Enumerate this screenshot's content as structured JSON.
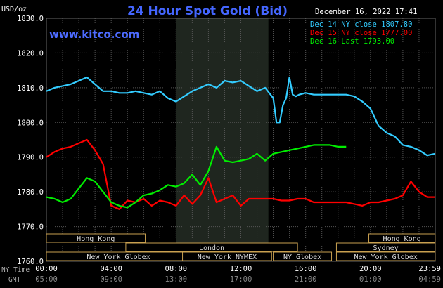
{
  "header": {
    "units": "USD/oz",
    "title": "24 Hour Spot Gold (Bid)",
    "date": "December 16, 2022 17:41",
    "watermark": "www.kitco.com"
  },
  "chart_data": {
    "type": "line",
    "title": "24 Hour Spot Gold (Bid)",
    "ylabel": "USD/oz",
    "ylim": [
      1760,
      1830
    ],
    "yticks": [
      "1830.0",
      "1820.0",
      "1810.0",
      "1800.0",
      "1790.0",
      "1780.0",
      "1770.0",
      "1760.0"
    ],
    "xlim": [
      0,
      24
    ],
    "ny_time_ticks": [
      "00:00",
      "04:00",
      "08:00",
      "12:00",
      "16:00",
      "20:00",
      "23:59"
    ],
    "gmt_ticks": [
      "05:00",
      "09:00",
      "13:00",
      "17:00",
      "21:00",
      "01:00",
      "04:59"
    ],
    "ny_time_label": "NY Time",
    "gmt_label": "GMT",
    "grid": true,
    "legend_position": "top-right",
    "highlight_range": [
      8,
      13.7
    ],
    "series": [
      {
        "name": "Dec 14 NY close 1807.80",
        "color": "#33ccff",
        "x": [
          0,
          0.5,
          1,
          1.5,
          2,
          2.5,
          3,
          3.5,
          4,
          4.5,
          5,
          5.5,
          6,
          6.5,
          7,
          7.5,
          8,
          8.5,
          9,
          9.5,
          10,
          10.5,
          11,
          11.5,
          12,
          12.5,
          13,
          13.5,
          14,
          14.2,
          14.4,
          14.6,
          14.8,
          15,
          15.2,
          15.4,
          15.6,
          16,
          16.5,
          17,
          17.5,
          18,
          18.5,
          19,
          19.5,
          20,
          20.5,
          21,
          21.5,
          22,
          22.5,
          23,
          23.5,
          23.99
        ],
        "y": [
          1809,
          1810,
          1810.5,
          1811,
          1812,
          1813,
          1811,
          1809,
          1809,
          1808.5,
          1808.5,
          1809,
          1808.5,
          1808,
          1809,
          1807,
          1806,
          1807.5,
          1809,
          1810,
          1811,
          1810,
          1812,
          1811.5,
          1812,
          1810.5,
          1809,
          1810,
          1807,
          1800,
          1800,
          1805,
          1807,
          1813,
          1808,
          1807.5,
          1808,
          1808.5,
          1808,
          1808,
          1808,
          1808,
          1808,
          1807.5,
          1806,
          1804,
          1799,
          1797,
          1796,
          1793.5,
          1793,
          1792,
          1790.5,
          1791
        ]
      },
      {
        "name": "Dec 15 NY close 1777.00",
        "color": "#ff0000",
        "x": [
          0,
          0.5,
          1,
          1.5,
          2,
          2.5,
          3,
          3.5,
          4,
          4.5,
          5,
          5.5,
          6,
          6.5,
          7,
          7.5,
          8,
          8.5,
          9,
          9.5,
          10,
          10.5,
          11,
          11.5,
          12,
          12.5,
          13,
          13.5,
          14,
          14.5,
          15,
          15.5,
          16,
          16.5,
          17,
          17.5,
          18,
          18.5,
          19,
          19.5,
          20,
          20.5,
          21,
          21.5,
          22,
          22.5,
          23,
          23.5,
          23.99
        ],
        "y": [
          1790,
          1791.5,
          1792.5,
          1793,
          1794,
          1795,
          1792,
          1788,
          1776,
          1775,
          1777.5,
          1777,
          1778,
          1776,
          1777.5,
          1777,
          1776,
          1779,
          1776.5,
          1779,
          1784,
          1777,
          1778,
          1779,
          1776,
          1778,
          1778,
          1778,
          1778,
          1777.5,
          1777.5,
          1778,
          1778,
          1777,
          1777,
          1777,
          1777,
          1777,
          1776.5,
          1776,
          1777,
          1777,
          1777.5,
          1778,
          1779,
          1783,
          1780,
          1778.5,
          1778.5
        ]
      },
      {
        "name": "Dec 16 Last 1793.00",
        "color": "#00ee00",
        "x": [
          0,
          0.5,
          1,
          1.5,
          2,
          2.5,
          3,
          3.5,
          4,
          4.5,
          5,
          5.5,
          6,
          6.5,
          7,
          7.5,
          8,
          8.5,
          9,
          9.5,
          10,
          10.5,
          11,
          11.5,
          12,
          12.5,
          13,
          13.5,
          14,
          14.5,
          15,
          15.5,
          16,
          16.5,
          17,
          17.5,
          18,
          18.5
        ],
        "y": [
          1778.5,
          1778,
          1777,
          1778,
          1781,
          1784,
          1783,
          1780,
          1777,
          1776,
          1775.5,
          1777,
          1779,
          1779.5,
          1780.5,
          1782,
          1781.5,
          1782.5,
          1785,
          1782,
          1786,
          1793,
          1789,
          1788.5,
          1789,
          1789.5,
          1791,
          1789,
          1791,
          1791.5,
          1792,
          1792.5,
          1793,
          1793.5,
          1793.5,
          1793.5,
          1793,
          1793
        ]
      }
    ]
  },
  "sessions": [
    {
      "label": "Hong Kong",
      "start": 0,
      "end": 6.1,
      "row": 0
    },
    {
      "label": "London",
      "start": 4.9,
      "end": 15.5,
      "row": 1
    },
    {
      "label": "New York Globex",
      "start": 0,
      "end": 8.9,
      "row": 2
    },
    {
      "label": "New York NYMEX",
      "start": 8.4,
      "end": 13.9,
      "row": 2
    },
    {
      "label": "NY Globex",
      "start": 14.0,
      "end": 17.6,
      "row": 2
    },
    {
      "label": "Hong Kong",
      "start": 19.9,
      "end": 23.99,
      "row": 0
    },
    {
      "label": "Sydney",
      "start": 17.9,
      "end": 23.99,
      "row": 1
    },
    {
      "label": "New York Globex",
      "start": 17.9,
      "end": 23.99,
      "row": 2
    }
  ]
}
